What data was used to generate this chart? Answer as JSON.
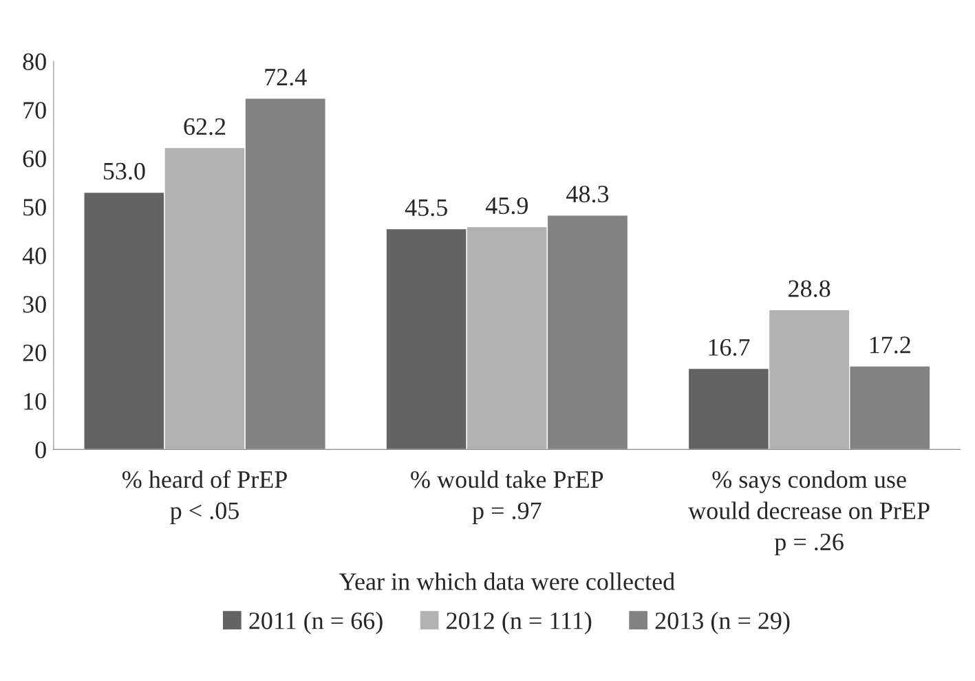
{
  "chart_data": {
    "type": "bar",
    "categories": [
      "% heard of PrEP\np < .05",
      "% would take PrEP\np = .97",
      "% says condom use\nwould decrease on PrEP\np = .26"
    ],
    "series": [
      {
        "name": "2011 (n = 66)",
        "color": "#636363",
        "values": [
          53.0,
          45.5,
          16.7
        ],
        "value_labels": [
          "53.0",
          "45.5",
          "16.7"
        ]
      },
      {
        "name": "2012 (n = 111)",
        "color": "#b2b2b2",
        "values": [
          62.2,
          45.9,
          28.8
        ],
        "value_labels": [
          "62.2",
          "45.9",
          "28.8"
        ]
      },
      {
        "name": "2013 (n = 29)",
        "color": "#828282",
        "values": [
          72.4,
          48.3,
          17.2
        ],
        "value_labels": [
          "72.4",
          "48.3",
          "17.2"
        ]
      }
    ],
    "xlabel": "Year in which data were collected",
    "ylim": [
      0,
      80
    ],
    "yticks": [
      0,
      10,
      20,
      30,
      40,
      50,
      60,
      70,
      80
    ],
    "grid": false,
    "legend": "bottom"
  }
}
